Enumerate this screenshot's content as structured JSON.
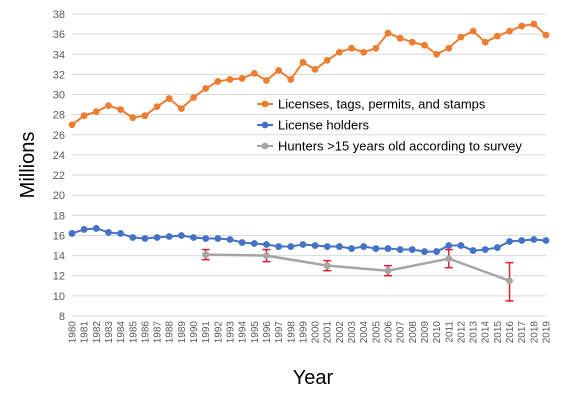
{
  "chart_data": {
    "type": "line",
    "xlabel": "Year",
    "ylabel": "Millions",
    "ylim": [
      8,
      38
    ],
    "yticks": [
      8,
      10,
      12,
      14,
      16,
      18,
      20,
      22,
      24,
      26,
      28,
      30,
      32,
      34,
      36,
      38
    ],
    "grid": true,
    "legend_position": "right",
    "x_categories": [
      "1980",
      "1981",
      "1982",
      "1983",
      "1984",
      "1985",
      "1986",
      "1987",
      "1988",
      "1989",
      "1990",
      "1991",
      "1992",
      "1993",
      "1994",
      "1995",
      "1996",
      "1997",
      "1998",
      "1999",
      "2000",
      "2001",
      "2002",
      "2003",
      "2004",
      "2005",
      "2006",
      "2007",
      "2008",
      "2009",
      "2010",
      "2011",
      "2012",
      "2013",
      "2014",
      "2015",
      "2016",
      "2017",
      "2018",
      "2019"
    ],
    "series": [
      {
        "name": "Licenses, tags, permits, and stamps",
        "color": "#ED7D31",
        "values": [
          27.0,
          27.9,
          28.3,
          28.9,
          28.5,
          27.7,
          27.9,
          28.8,
          29.6,
          28.6,
          29.7,
          30.6,
          31.3,
          31.5,
          31.6,
          32.1,
          31.4,
          32.4,
          31.5,
          33.2,
          32.5,
          33.4,
          34.2,
          34.6,
          34.2,
          34.6,
          36.1,
          35.6,
          35.2,
          34.9,
          34.0,
          34.6,
          35.7,
          36.3,
          35.2,
          35.8,
          36.3,
          36.8,
          37.0,
          35.9
        ]
      },
      {
        "name": "License holders",
        "color": "#4472C4",
        "values": [
          16.2,
          16.6,
          16.7,
          16.3,
          16.2,
          15.8,
          15.7,
          15.8,
          15.9,
          16.0,
          15.8,
          15.7,
          15.7,
          15.6,
          15.3,
          15.2,
          15.1,
          14.9,
          14.9,
          15.1,
          15.0,
          14.9,
          14.9,
          14.7,
          14.9,
          14.7,
          14.7,
          14.6,
          14.6,
          14.4,
          14.4,
          15.0,
          15.0,
          14.5,
          14.6,
          14.8,
          15.4,
          15.5,
          15.6,
          15.5
        ]
      },
      {
        "name": "Hunters >15 years old according to survey",
        "color": "#A5A5A5",
        "points": [
          {
            "x": "1991",
            "y": 14.1,
            "err_low": 13.6,
            "err_high": 14.6
          },
          {
            "x": "1996",
            "y": 14.0,
            "err_low": 13.4,
            "err_high": 14.6
          },
          {
            "x": "2001",
            "y": 13.0,
            "err_low": 12.5,
            "err_high": 13.5
          },
          {
            "x": "2006",
            "y": 12.5,
            "err_low": 12.0,
            "err_high": 13.0
          },
          {
            "x": "2011",
            "y": 13.7,
            "err_low": 12.8,
            "err_high": 14.6
          },
          {
            "x": "2016",
            "y": 11.5,
            "err_low": 9.5,
            "err_high": 13.3
          }
        ],
        "error_bar_color": "#E0212B"
      }
    ]
  }
}
